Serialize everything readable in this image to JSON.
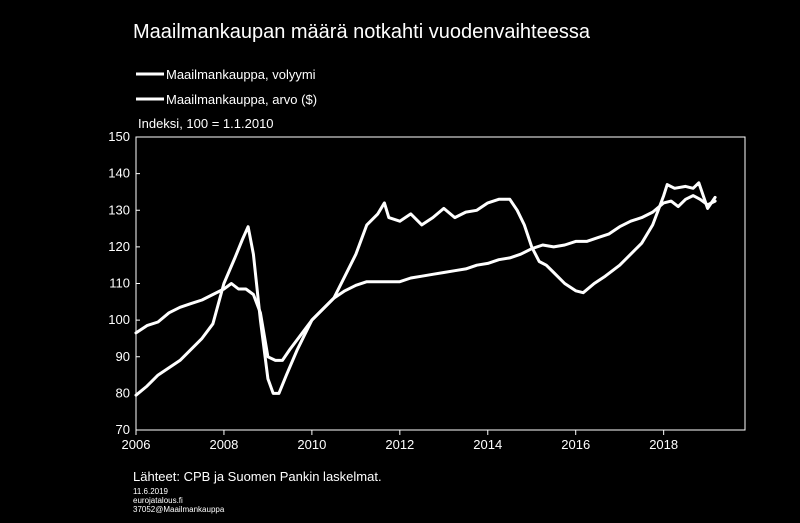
{
  "chart_data": {
    "type": "line",
    "title": "Maailmankaupan määrä notkahti vuodenvaihteessa",
    "unit_label": "Indeksi, 100 = 1.1.2010",
    "xlim": [
      2006,
      2019.85
    ],
    "ylim": [
      70,
      150
    ],
    "x_ticks": [
      "2006",
      "2008",
      "2010",
      "2012",
      "2014",
      "2016",
      "2018"
    ],
    "y_ticks": [
      "70",
      "80",
      "90",
      "100",
      "110",
      "120",
      "130",
      "140",
      "150"
    ],
    "grid": false,
    "legend_position": "top-left",
    "series": [
      {
        "name": "Maailmankauppa, volyymi",
        "color": "#ffffff",
        "points": [
          [
            2006.0,
            96.5
          ],
          [
            2006.25,
            98.5
          ],
          [
            2006.5,
            99.5
          ],
          [
            2006.75,
            102
          ],
          [
            2007.0,
            103.5
          ],
          [
            2007.25,
            104.5
          ],
          [
            2007.5,
            105.5
          ],
          [
            2007.75,
            107
          ],
          [
            2008.0,
            108.5
          ],
          [
            2008.17,
            110
          ],
          [
            2008.33,
            108.5
          ],
          [
            2008.5,
            108.5
          ],
          [
            2008.67,
            107
          ],
          [
            2008.83,
            102
          ],
          [
            2009.0,
            90
          ],
          [
            2009.17,
            89
          ],
          [
            2009.33,
            89
          ],
          [
            2009.5,
            92
          ],
          [
            2009.75,
            96
          ],
          [
            2010.0,
            100
          ],
          [
            2010.25,
            103
          ],
          [
            2010.5,
            106
          ],
          [
            2010.75,
            108
          ],
          [
            2011.0,
            109.5
          ],
          [
            2011.25,
            110.5
          ],
          [
            2011.5,
            110.5
          ],
          [
            2011.75,
            110.5
          ],
          [
            2012.0,
            110.5
          ],
          [
            2012.25,
            111.5
          ],
          [
            2012.5,
            112
          ],
          [
            2012.75,
            112.5
          ],
          [
            2013.0,
            113
          ],
          [
            2013.25,
            113.5
          ],
          [
            2013.5,
            114
          ],
          [
            2013.75,
            115
          ],
          [
            2014.0,
            115.5
          ],
          [
            2014.25,
            116.5
          ],
          [
            2014.5,
            117
          ],
          [
            2014.75,
            118
          ],
          [
            2015.0,
            119.5
          ],
          [
            2015.25,
            120.5
          ],
          [
            2015.5,
            120
          ],
          [
            2015.75,
            120.5
          ],
          [
            2016.0,
            121.5
          ],
          [
            2016.25,
            121.5
          ],
          [
            2016.5,
            122.5
          ],
          [
            2016.75,
            123.5
          ],
          [
            2017.0,
            125.5
          ],
          [
            2017.25,
            127
          ],
          [
            2017.5,
            128
          ],
          [
            2017.75,
            129.5
          ],
          [
            2018.0,
            132
          ],
          [
            2018.17,
            132.5
          ],
          [
            2018.33,
            131
          ],
          [
            2018.5,
            133
          ],
          [
            2018.67,
            134
          ],
          [
            2018.83,
            133
          ],
          [
            2019.0,
            131.5
          ],
          [
            2019.17,
            132.5
          ]
        ]
      },
      {
        "name": "Maailmankauppa, arvo ($)",
        "color": "#ffffff",
        "points": [
          [
            2006.0,
            79.5
          ],
          [
            2006.25,
            82
          ],
          [
            2006.5,
            85
          ],
          [
            2006.75,
            87
          ],
          [
            2007.0,
            89
          ],
          [
            2007.25,
            92
          ],
          [
            2007.5,
            95
          ],
          [
            2007.75,
            99
          ],
          [
            2008.0,
            110
          ],
          [
            2008.25,
            117
          ],
          [
            2008.42,
            122
          ],
          [
            2008.55,
            125.5
          ],
          [
            2008.67,
            118
          ],
          [
            2008.83,
            100
          ],
          [
            2009.0,
            84
          ],
          [
            2009.12,
            80
          ],
          [
            2009.25,
            80
          ],
          [
            2009.42,
            85
          ],
          [
            2009.67,
            92
          ],
          [
            2010.0,
            100
          ],
          [
            2010.25,
            103
          ],
          [
            2010.5,
            106
          ],
          [
            2010.75,
            112
          ],
          [
            2011.0,
            118
          ],
          [
            2011.25,
            126
          ],
          [
            2011.5,
            129
          ],
          [
            2011.65,
            132
          ],
          [
            2011.75,
            128
          ],
          [
            2012.0,
            127
          ],
          [
            2012.25,
            129
          ],
          [
            2012.5,
            126
          ],
          [
            2012.75,
            128
          ],
          [
            2013.0,
            130.5
          ],
          [
            2013.25,
            128
          ],
          [
            2013.5,
            129.5
          ],
          [
            2013.75,
            130
          ],
          [
            2014.0,
            132
          ],
          [
            2014.25,
            133
          ],
          [
            2014.5,
            133
          ],
          [
            2014.67,
            130
          ],
          [
            2014.83,
            126
          ],
          [
            2015.0,
            120
          ],
          [
            2015.17,
            116
          ],
          [
            2015.33,
            115
          ],
          [
            2015.5,
            113
          ],
          [
            2015.75,
            110
          ],
          [
            2016.0,
            108
          ],
          [
            2016.17,
            107.5
          ],
          [
            2016.42,
            110
          ],
          [
            2016.67,
            112
          ],
          [
            2017.0,
            115
          ],
          [
            2017.25,
            118
          ],
          [
            2017.5,
            121
          ],
          [
            2017.75,
            126
          ],
          [
            2018.0,
            134
          ],
          [
            2018.08,
            137
          ],
          [
            2018.25,
            136
          ],
          [
            2018.5,
            136.5
          ],
          [
            2018.67,
            136
          ],
          [
            2018.8,
            137.5
          ],
          [
            2019.0,
            130.5
          ],
          [
            2019.17,
            133.5
          ]
        ]
      }
    ],
    "source": "Lähteet: CPB ja Suomen Pankin laskelmat."
  },
  "footer": {
    "date": "11.6.2019",
    "site": "eurojatalous.fi",
    "code": "37052@Maailmankauppa"
  }
}
